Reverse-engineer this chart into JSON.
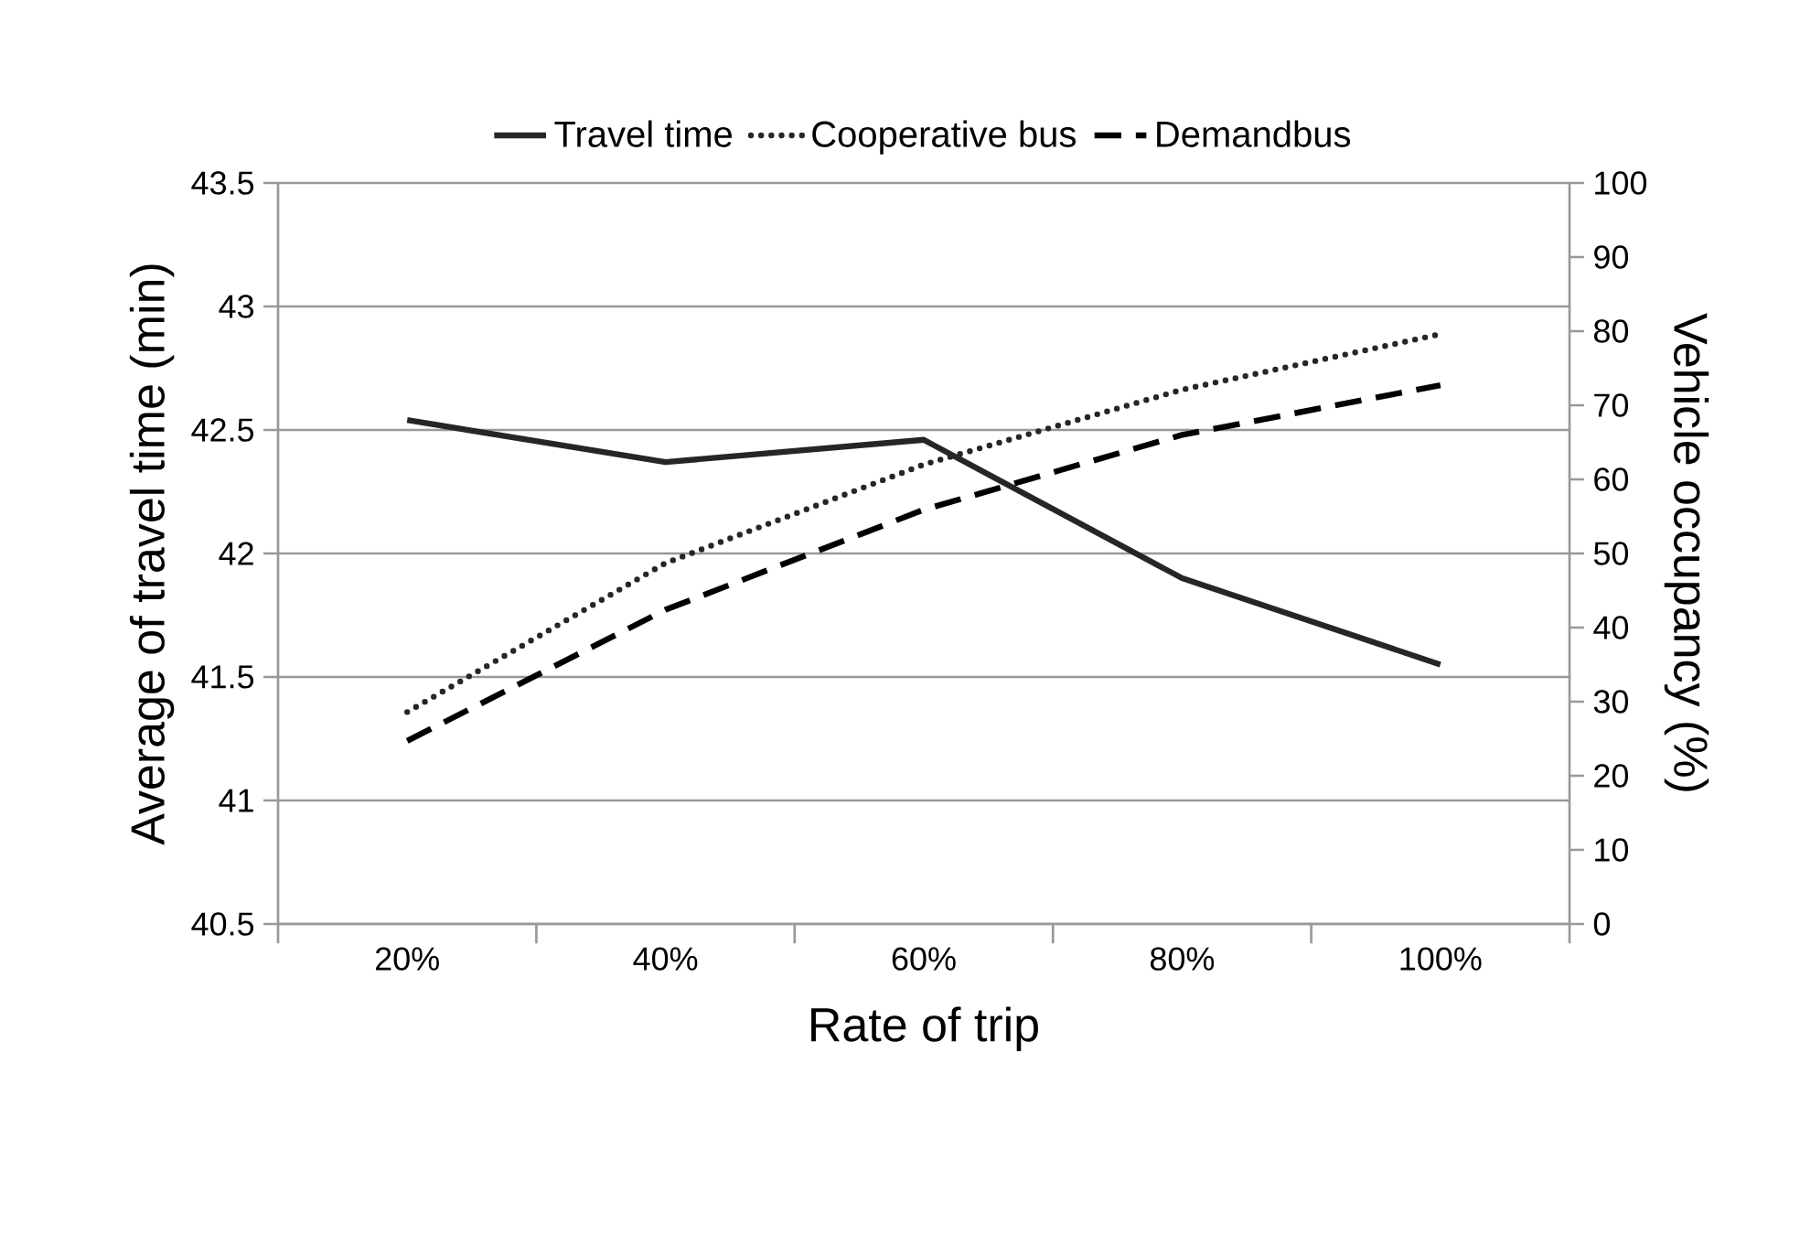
{
  "chart_data": {
    "type": "line",
    "xlabel": "Rate of trip",
    "ylabel": "Average of travel time (min)",
    "y2label": "Vehicle occupancy (%)",
    "categories": [
      "20%",
      "40%",
      "60%",
      "80%",
      "100%"
    ],
    "series": [
      {
        "name": "Travel time",
        "color": "#262626",
        "line_style": "solid",
        "values": [
          42.54,
          42.37,
          42.46,
          41.9,
          41.55
        ]
      },
      {
        "name": "Cooperative bus",
        "color": "#262626",
        "line_style": "dotted",
        "axis": "y2",
        "values": [
          28.6,
          48.7,
          62,
          72.1,
          79.6
        ]
      },
      {
        "name": "Demandbus",
        "color": "#000000",
        "line_style": "dashed",
        "axis": "y2",
        "values": [
          24.7,
          42.4,
          55.9,
          66,
          72.7
        ]
      }
    ],
    "ylim": [
      40.5,
      43.5
    ],
    "yticks": [
      40.5,
      41,
      41.5,
      42,
      42.5,
      43,
      43.5
    ],
    "y2lim": [
      0,
      100
    ],
    "y2ticks": [
      0,
      10,
      20,
      30,
      40,
      50,
      60,
      70,
      80,
      90,
      100
    ],
    "grid": "y",
    "legend": "top"
  }
}
